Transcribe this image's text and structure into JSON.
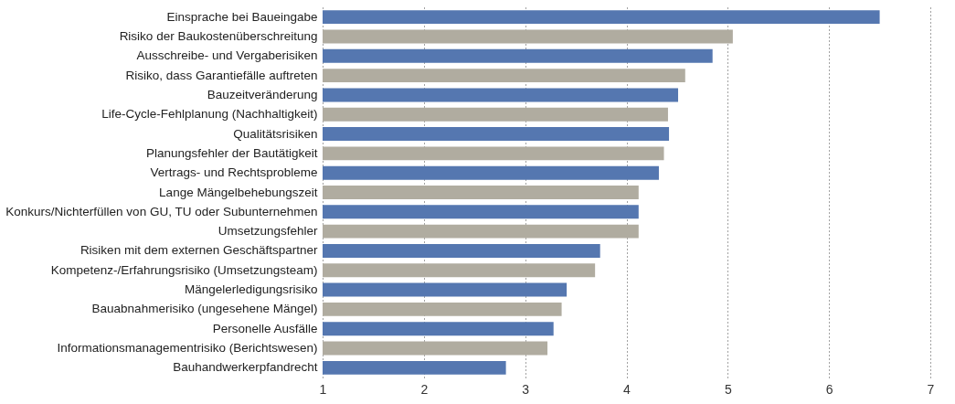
{
  "chart_data": {
    "type": "bar",
    "orientation": "horizontal",
    "categories": [
      "Einsprache bei Baueingabe",
      "Risiko der Baukostenüberschreitung",
      "Ausschreibe- und Vergaberisiken",
      "Risiko, dass Garantiefälle auftreten",
      "Bauzeitveränderung",
      "Life-Cycle-Fehlplanung (Nachhaltigkeit)",
      "Qualitätsrisiken",
      "Planungsfehler der Bautätigkeit",
      "Vertrags- und Rechtsprobleme",
      "Lange Mängelbehebungszeit",
      "Konkurs/Nichterfüllen von GU, TU oder Subunternehmen",
      "Umsetzungsfehler",
      "Risiken mit dem externen Geschäftspartner",
      "Kompetenz-/Erfahrungsrisiko (Umsetzungsteam)",
      "Mängelerledigungsrisiko",
      "Bauabnahmerisiko (ungesehene Mängel)",
      "Personelle Ausfälle",
      "Informationsmanagementrisiko (Berichtswesen)",
      "Bauhandwerkerpfandrecht"
    ],
    "values": [
      6.5,
      5.05,
      4.85,
      4.58,
      4.51,
      4.41,
      4.42,
      4.37,
      4.32,
      4.12,
      4.12,
      4.12,
      3.74,
      3.69,
      3.41,
      3.36,
      3.28,
      3.22,
      2.81
    ],
    "colors": [
      "#5577b0",
      "#b0aca0",
      "#5577b0",
      "#b0aca0",
      "#5577b0",
      "#b0aca0",
      "#5577b0",
      "#b0aca0",
      "#5577b0",
      "#b0aca0",
      "#5577b0",
      "#b0aca0",
      "#5577b0",
      "#b0aca0",
      "#5577b0",
      "#b0aca0",
      "#5577b0",
      "#b0aca0",
      "#5577b0"
    ],
    "xlim": [
      1,
      7
    ],
    "xticks": [
      1,
      2,
      3,
      4,
      5,
      6,
      7
    ],
    "grid": "x"
  }
}
